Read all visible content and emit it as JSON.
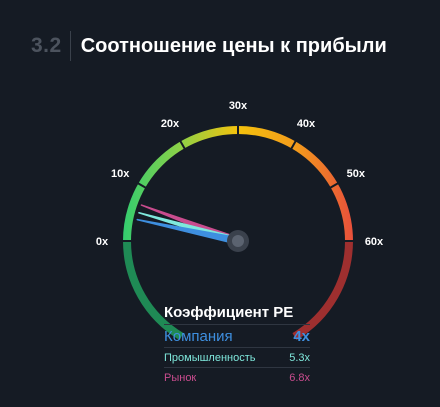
{
  "header": {
    "section_number": "3.2",
    "title": "Соотношение цены к прибыли"
  },
  "colors": {
    "company": "#3e8fdf",
    "industry": "#7fe8dc",
    "market": "#c94c8e",
    "arc_green": "#2ecc71",
    "arc_yellow": "#f4c20d",
    "arc_red": "#e84c3d"
  },
  "chart_data": {
    "type": "gauge",
    "title": "Коэффициент PE",
    "range": [
      0,
      60
    ],
    "ticks": [
      0,
      10,
      20,
      30,
      40,
      50,
      60
    ],
    "tick_labels": [
      "0x",
      "10x",
      "20x",
      "30x",
      "40x",
      "50x",
      "60x"
    ],
    "series": [
      {
        "name": "Компания",
        "value": 4,
        "label": "4x",
        "color": "#3e8fdf"
      },
      {
        "name": "Промышленность",
        "value": 5.3,
        "label": "5.3x",
        "color": "#7fe8dc"
      },
      {
        "name": "Рынок",
        "value": 6.8,
        "label": "6.8x",
        "color": "#c94c8e"
      }
    ]
  }
}
